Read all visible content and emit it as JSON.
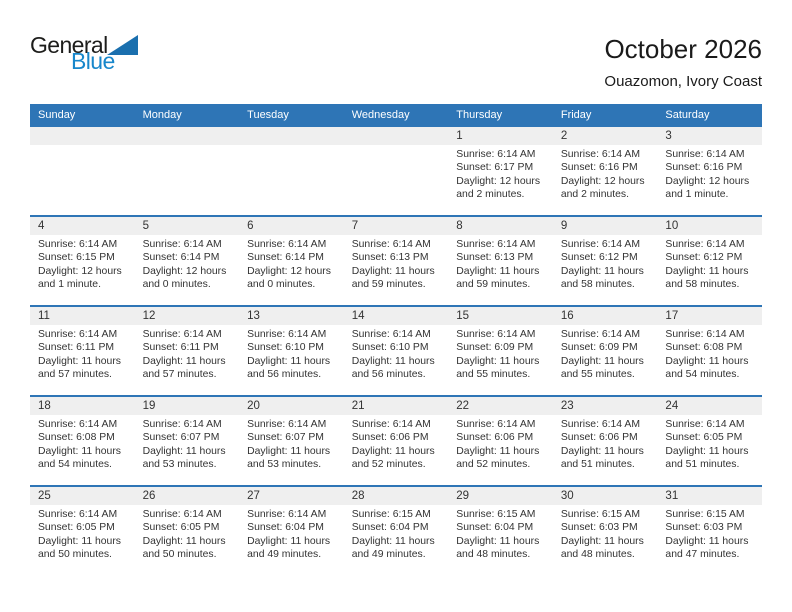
{
  "logo": {
    "line1": "General",
    "line2": "Blue"
  },
  "header": {
    "title": "October 2026",
    "subtitle": "Ouazomon, Ivory Coast"
  },
  "colors": {
    "header_blue": "#2E75B6",
    "row_separator_blue": "#2E75B6",
    "day_band_gray": "#EFEFEF",
    "logo_text_blue": "#1887CB",
    "logo_triangle_blue": "#1A6FAE",
    "body_text": "#333333"
  },
  "weekdays": [
    "Sunday",
    "Monday",
    "Tuesday",
    "Wednesday",
    "Thursday",
    "Friday",
    "Saturday"
  ],
  "weeks": [
    [
      {
        "day": ""
      },
      {
        "day": ""
      },
      {
        "day": ""
      },
      {
        "day": ""
      },
      {
        "day": "1",
        "sunrise": "Sunrise: 6:14 AM",
        "sunset": "Sunset: 6:17 PM",
        "daylight": "Daylight: 12 hours and 2 minutes."
      },
      {
        "day": "2",
        "sunrise": "Sunrise: 6:14 AM",
        "sunset": "Sunset: 6:16 PM",
        "daylight": "Daylight: 12 hours and 2 minutes."
      },
      {
        "day": "3",
        "sunrise": "Sunrise: 6:14 AM",
        "sunset": "Sunset: 6:16 PM",
        "daylight": "Daylight: 12 hours and 1 minute."
      }
    ],
    [
      {
        "day": "4",
        "sunrise": "Sunrise: 6:14 AM",
        "sunset": "Sunset: 6:15 PM",
        "daylight": "Daylight: 12 hours and 1 minute."
      },
      {
        "day": "5",
        "sunrise": "Sunrise: 6:14 AM",
        "sunset": "Sunset: 6:14 PM",
        "daylight": "Daylight: 12 hours and 0 minutes."
      },
      {
        "day": "6",
        "sunrise": "Sunrise: 6:14 AM",
        "sunset": "Sunset: 6:14 PM",
        "daylight": "Daylight: 12 hours and 0 minutes."
      },
      {
        "day": "7",
        "sunrise": "Sunrise: 6:14 AM",
        "sunset": "Sunset: 6:13 PM",
        "daylight": "Daylight: 11 hours and 59 minutes."
      },
      {
        "day": "8",
        "sunrise": "Sunrise: 6:14 AM",
        "sunset": "Sunset: 6:13 PM",
        "daylight": "Daylight: 11 hours and 59 minutes."
      },
      {
        "day": "9",
        "sunrise": "Sunrise: 6:14 AM",
        "sunset": "Sunset: 6:12 PM",
        "daylight": "Daylight: 11 hours and 58 minutes."
      },
      {
        "day": "10",
        "sunrise": "Sunrise: 6:14 AM",
        "sunset": "Sunset: 6:12 PM",
        "daylight": "Daylight: 11 hours and 58 minutes."
      }
    ],
    [
      {
        "day": "11",
        "sunrise": "Sunrise: 6:14 AM",
        "sunset": "Sunset: 6:11 PM",
        "daylight": "Daylight: 11 hours and 57 minutes."
      },
      {
        "day": "12",
        "sunrise": "Sunrise: 6:14 AM",
        "sunset": "Sunset: 6:11 PM",
        "daylight": "Daylight: 11 hours and 57 minutes."
      },
      {
        "day": "13",
        "sunrise": "Sunrise: 6:14 AM",
        "sunset": "Sunset: 6:10 PM",
        "daylight": "Daylight: 11 hours and 56 minutes."
      },
      {
        "day": "14",
        "sunrise": "Sunrise: 6:14 AM",
        "sunset": "Sunset: 6:10 PM",
        "daylight": "Daylight: 11 hours and 56 minutes."
      },
      {
        "day": "15",
        "sunrise": "Sunrise: 6:14 AM",
        "sunset": "Sunset: 6:09 PM",
        "daylight": "Daylight: 11 hours and 55 minutes."
      },
      {
        "day": "16",
        "sunrise": "Sunrise: 6:14 AM",
        "sunset": "Sunset: 6:09 PM",
        "daylight": "Daylight: 11 hours and 55 minutes."
      },
      {
        "day": "17",
        "sunrise": "Sunrise: 6:14 AM",
        "sunset": "Sunset: 6:08 PM",
        "daylight": "Daylight: 11 hours and 54 minutes."
      }
    ],
    [
      {
        "day": "18",
        "sunrise": "Sunrise: 6:14 AM",
        "sunset": "Sunset: 6:08 PM",
        "daylight": "Daylight: 11 hours and 54 minutes."
      },
      {
        "day": "19",
        "sunrise": "Sunrise: 6:14 AM",
        "sunset": "Sunset: 6:07 PM",
        "daylight": "Daylight: 11 hours and 53 minutes."
      },
      {
        "day": "20",
        "sunrise": "Sunrise: 6:14 AM",
        "sunset": "Sunset: 6:07 PM",
        "daylight": "Daylight: 11 hours and 53 minutes."
      },
      {
        "day": "21",
        "sunrise": "Sunrise: 6:14 AM",
        "sunset": "Sunset: 6:06 PM",
        "daylight": "Daylight: 11 hours and 52 minutes."
      },
      {
        "day": "22",
        "sunrise": "Sunrise: 6:14 AM",
        "sunset": "Sunset: 6:06 PM",
        "daylight": "Daylight: 11 hours and 52 minutes."
      },
      {
        "day": "23",
        "sunrise": "Sunrise: 6:14 AM",
        "sunset": "Sunset: 6:06 PM",
        "daylight": "Daylight: 11 hours and 51 minutes."
      },
      {
        "day": "24",
        "sunrise": "Sunrise: 6:14 AM",
        "sunset": "Sunset: 6:05 PM",
        "daylight": "Daylight: 11 hours and 51 minutes."
      }
    ],
    [
      {
        "day": "25",
        "sunrise": "Sunrise: 6:14 AM",
        "sunset": "Sunset: 6:05 PM",
        "daylight": "Daylight: 11 hours and 50 minutes."
      },
      {
        "day": "26",
        "sunrise": "Sunrise: 6:14 AM",
        "sunset": "Sunset: 6:05 PM",
        "daylight": "Daylight: 11 hours and 50 minutes."
      },
      {
        "day": "27",
        "sunrise": "Sunrise: 6:14 AM",
        "sunset": "Sunset: 6:04 PM",
        "daylight": "Daylight: 11 hours and 49 minutes."
      },
      {
        "day": "28",
        "sunrise": "Sunrise: 6:15 AM",
        "sunset": "Sunset: 6:04 PM",
        "daylight": "Daylight: 11 hours and 49 minutes."
      },
      {
        "day": "29",
        "sunrise": "Sunrise: 6:15 AM",
        "sunset": "Sunset: 6:04 PM",
        "daylight": "Daylight: 11 hours and 48 minutes."
      },
      {
        "day": "30",
        "sunrise": "Sunrise: 6:15 AM",
        "sunset": "Sunset: 6:03 PM",
        "daylight": "Daylight: 11 hours and 48 minutes."
      },
      {
        "day": "31",
        "sunrise": "Sunrise: 6:15 AM",
        "sunset": "Sunset: 6:03 PM",
        "daylight": "Daylight: 11 hours and 47 minutes."
      }
    ]
  ]
}
